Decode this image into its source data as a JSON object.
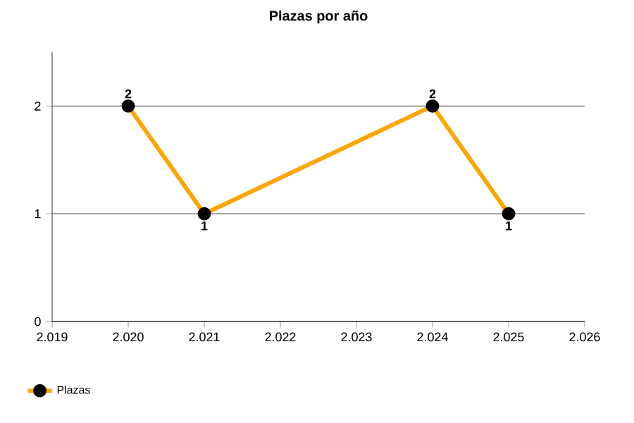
{
  "chart_data": {
    "type": "line",
    "title": "Plazas por año",
    "x": [
      2020,
      2021,
      2024,
      2025
    ],
    "series": [
      {
        "name": "Plazas",
        "color": "#ffa500",
        "values": [
          2,
          1,
          2,
          1
        ]
      }
    ],
    "xlim": [
      2019,
      2026
    ],
    "xticks": [
      {
        "value": 2019,
        "label": "2.019"
      },
      {
        "value": 2020,
        "label": "2.020"
      },
      {
        "value": 2021,
        "label": "2.021"
      },
      {
        "value": 2022,
        "label": "2.022"
      },
      {
        "value": 2023,
        "label": "2.023"
      },
      {
        "value": 2024,
        "label": "2.024"
      },
      {
        "value": 2025,
        "label": "2.025"
      },
      {
        "value": 2026,
        "label": "2.026"
      }
    ],
    "ylim": [
      0,
      2.5
    ],
    "yticks": [
      0,
      1,
      2
    ],
    "grid": "y",
    "legend": "bottom left",
    "marker": "circle",
    "data_labels": true
  }
}
